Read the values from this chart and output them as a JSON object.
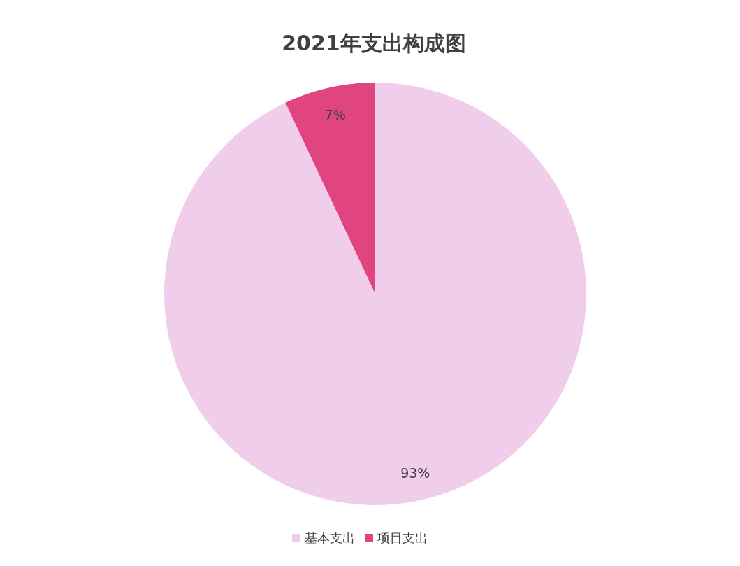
{
  "chart_data": {
    "type": "pie",
    "title": "2021年支出构成图",
    "categories": [
      "基本支出",
      "项目支出"
    ],
    "values": [
      93,
      7
    ],
    "colors": [
      "#f0cdea",
      "#e0457f"
    ],
    "value_labels": [
      "93%",
      "7%"
    ],
    "legend": "bottom"
  }
}
